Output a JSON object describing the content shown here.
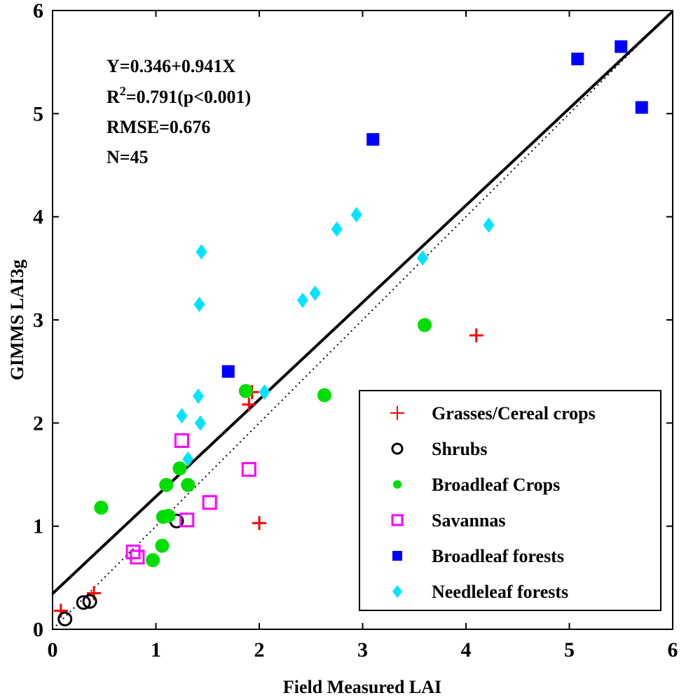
{
  "chart_data": {
    "type": "scatter",
    "xlabel": "Field Measured LAI",
    "ylabel": "GIMMS LAI3g",
    "xlim": [
      0,
      6
    ],
    "ylim": [
      0,
      6
    ],
    "xticks": [
      0,
      1,
      2,
      3,
      4,
      5,
      6
    ],
    "yticks": [
      0,
      1,
      2,
      3,
      4,
      5,
      6
    ],
    "xtick_labels": [
      "0",
      "1",
      "2",
      "3",
      "4",
      "5",
      "6"
    ],
    "ytick_labels": [
      "0",
      "1",
      "2",
      "3",
      "4",
      "5",
      "6"
    ],
    "stats": {
      "equation": "Y=0.346+0.941X",
      "r2_prefix": "R",
      "r2_sup": "2",
      "r2_rest": "=0.791(p<0.001)",
      "rmse": "RMSE=0.676",
      "n": "N=45"
    },
    "regression_line": {
      "intercept": 0.346,
      "slope": 0.941,
      "color": "#000000",
      "style": "solid"
    },
    "identity_line": {
      "x": [
        0,
        6
      ],
      "y": [
        0,
        6
      ],
      "color": "#000000",
      "style": "dotted"
    },
    "legend_position": "bottom-right",
    "series": [
      {
        "name": "Grasses/Cereal crops",
        "marker": "plus",
        "color": "#ff0000",
        "points": [
          [
            0.08,
            0.18
          ],
          [
            0.4,
            0.35
          ],
          [
            1.9,
            2.18
          ],
          [
            1.93,
            2.3
          ],
          [
            2.0,
            1.03
          ],
          [
            4.1,
            2.85
          ]
        ]
      },
      {
        "name": "Shrubs",
        "marker": "circle-open",
        "color": "#000000",
        "points": [
          [
            0.12,
            0.1
          ],
          [
            0.3,
            0.26
          ],
          [
            0.36,
            0.27
          ],
          [
            1.2,
            1.05
          ]
        ]
      },
      {
        "name": "Broadleaf Crops",
        "marker": "circle-filled",
        "color": "#00dd00",
        "points": [
          [
            0.47,
            1.18
          ],
          [
            0.97,
            0.67
          ],
          [
            1.06,
            0.81
          ],
          [
            1.07,
            1.09
          ],
          [
            1.12,
            1.1
          ],
          [
            1.1,
            1.4
          ],
          [
            1.23,
            1.56
          ],
          [
            1.31,
            1.4
          ],
          [
            1.87,
            2.31
          ],
          [
            2.63,
            2.27
          ],
          [
            3.6,
            2.95
          ]
        ]
      },
      {
        "name": "Savannas",
        "marker": "square-open",
        "color": "#ff00ff",
        "points": [
          [
            0.78,
            0.75
          ],
          [
            0.82,
            0.7
          ],
          [
            1.25,
            1.83
          ],
          [
            1.3,
            1.06
          ],
          [
            1.52,
            1.23
          ],
          [
            1.9,
            1.55
          ]
        ]
      },
      {
        "name": "Broadleaf forests",
        "marker": "square-filled",
        "color": "#0000ff",
        "points": [
          [
            1.7,
            2.5
          ],
          [
            3.1,
            4.75
          ],
          [
            5.08,
            5.53
          ],
          [
            5.5,
            5.65
          ],
          [
            5.7,
            5.06
          ]
        ]
      },
      {
        "name": "Needleleaf forests",
        "marker": "diamond",
        "color": "#00e5ff",
        "points": [
          [
            1.25,
            2.07
          ],
          [
            1.31,
            1.65
          ],
          [
            1.41,
            2.26
          ],
          [
            1.43,
            2.0
          ],
          [
            1.42,
            3.15
          ],
          [
            1.44,
            3.66
          ],
          [
            2.05,
            2.3
          ],
          [
            2.42,
            3.19
          ],
          [
            2.54,
            3.26
          ],
          [
            2.75,
            3.88
          ],
          [
            2.94,
            4.02
          ],
          [
            3.58,
            3.6
          ],
          [
            4.22,
            3.92
          ]
        ]
      }
    ]
  }
}
